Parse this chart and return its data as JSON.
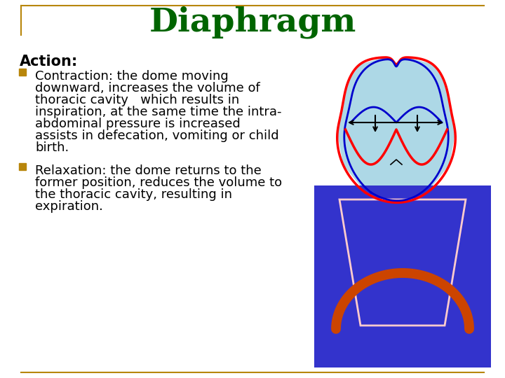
{
  "title": "Diaphragm",
  "title_color": "#006400",
  "title_fontsize": 34,
  "background_color": "#ffffff",
  "border_color": "#B8860B",
  "action_label": "Action:",
  "action_fontsize": 15,
  "bullet_color": "#B8860B",
  "bullet1_lines": [
    "Contraction: the dome moving",
    "downward, increases the volume of",
    "thoracic cavity   which results in",
    "inspiration, at the same time the intra-",
    "abdominal pressure is increased",
    "assists in defecation, vomiting or child",
    "birth."
  ],
  "bullet2_lines": [
    "Relaxation: the dome returns to the",
    "former position, reduces the volume to",
    "the thoracic cavity, resulting in",
    "expiration."
  ],
  "top_diagram_bg": "#add8e6",
  "top_diagram_red": "#ff0000",
  "top_diagram_blue": "#0000cc",
  "bottom_diagram_bg": "#3333cc",
  "bottom_arch_color": "#cc4400",
  "bottom_sides_color": "#ffcccc",
  "text_fontsize": 13
}
